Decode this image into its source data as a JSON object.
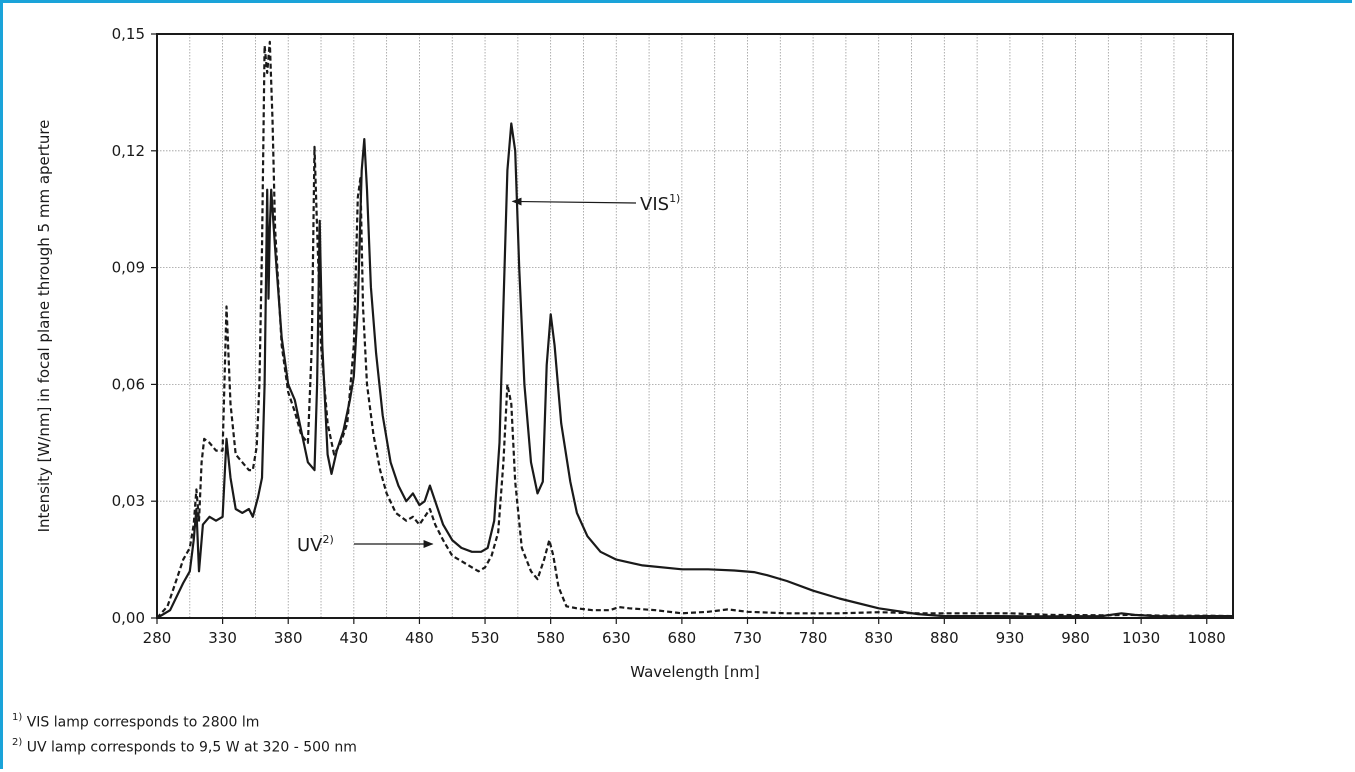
{
  "chart_data": {
    "type": "line",
    "xlabel": "Wavelength [nm]",
    "ylabel": "Intensity [W/nm] in focal plane through 5 mm aperture",
    "xlim": [
      280,
      1100
    ],
    "ylim": [
      0,
      0.15
    ],
    "x_ticks": [
      280,
      330,
      380,
      430,
      480,
      530,
      580,
      630,
      680,
      730,
      780,
      830,
      880,
      930,
      980,
      1030,
      1080
    ],
    "x_tick_labels": [
      "280",
      "330",
      "380",
      "430",
      "480",
      "530",
      "580",
      "630",
      "680",
      "730",
      "780",
      "830",
      "880",
      "930",
      "980",
      "1030",
      "1080"
    ],
    "y_ticks": [
      0,
      0.03,
      0.06,
      0.09,
      0.12,
      0.15
    ],
    "y_tick_labels": [
      "0,00",
      "0,03",
      "0,06",
      "0,09",
      "0,12",
      "0,15"
    ],
    "grid": true,
    "series": [
      {
        "name": "VIS",
        "superscript": "1)",
        "style": "solid",
        "color": "#1a1a1a",
        "points": [
          [
            280,
            0.0
          ],
          [
            290,
            0.002
          ],
          [
            300,
            0.009
          ],
          [
            305,
            0.012
          ],
          [
            308,
            0.02
          ],
          [
            310,
            0.028
          ],
          [
            312,
            0.012
          ],
          [
            315,
            0.024
          ],
          [
            320,
            0.026
          ],
          [
            325,
            0.025
          ],
          [
            330,
            0.026
          ],
          [
            333,
            0.046
          ],
          [
            336,
            0.036
          ],
          [
            340,
            0.028
          ],
          [
            345,
            0.027
          ],
          [
            350,
            0.028
          ],
          [
            353,
            0.026
          ],
          [
            357,
            0.031
          ],
          [
            360,
            0.036
          ],
          [
            362,
            0.06
          ],
          [
            364,
            0.11
          ],
          [
            365,
            0.082
          ],
          [
            366,
            0.1
          ],
          [
            367,
            0.11
          ],
          [
            370,
            0.095
          ],
          [
            375,
            0.072
          ],
          [
            380,
            0.06
          ],
          [
            385,
            0.056
          ],
          [
            390,
            0.048
          ],
          [
            395,
            0.04
          ],
          [
            400,
            0.038
          ],
          [
            402,
            0.06
          ],
          [
            404,
            0.102
          ],
          [
            406,
            0.07
          ],
          [
            410,
            0.042
          ],
          [
            413,
            0.037
          ],
          [
            417,
            0.043
          ],
          [
            422,
            0.048
          ],
          [
            427,
            0.056
          ],
          [
            430,
            0.062
          ],
          [
            433,
            0.08
          ],
          [
            436,
            0.115
          ],
          [
            438,
            0.123
          ],
          [
            440,
            0.11
          ],
          [
            443,
            0.085
          ],
          [
            447,
            0.068
          ],
          [
            452,
            0.052
          ],
          [
            458,
            0.04
          ],
          [
            464,
            0.034
          ],
          [
            470,
            0.03
          ],
          [
            475,
            0.032
          ],
          [
            480,
            0.029
          ],
          [
            484,
            0.03
          ],
          [
            488,
            0.034
          ],
          [
            492,
            0.03
          ],
          [
            498,
            0.024
          ],
          [
            505,
            0.02
          ],
          [
            512,
            0.018
          ],
          [
            520,
            0.017
          ],
          [
            527,
            0.017
          ],
          [
            532,
            0.018
          ],
          [
            537,
            0.025
          ],
          [
            541,
            0.045
          ],
          [
            544,
            0.08
          ],
          [
            547,
            0.115
          ],
          [
            550,
            0.127
          ],
          [
            553,
            0.12
          ],
          [
            556,
            0.09
          ],
          [
            560,
            0.06
          ],
          [
            565,
            0.04
          ],
          [
            570,
            0.032
          ],
          [
            574,
            0.035
          ],
          [
            577,
            0.065
          ],
          [
            580,
            0.078
          ],
          [
            583,
            0.07
          ],
          [
            588,
            0.05
          ],
          [
            595,
            0.035
          ],
          [
            600,
            0.027
          ],
          [
            608,
            0.021
          ],
          [
            618,
            0.017
          ],
          [
            630,
            0.015
          ],
          [
            650,
            0.0135
          ],
          [
            680,
            0.0125
          ],
          [
            700,
            0.0125
          ],
          [
            720,
            0.0122
          ],
          [
            735,
            0.0118
          ],
          [
            745,
            0.011
          ],
          [
            760,
            0.0095
          ],
          [
            780,
            0.007
          ],
          [
            800,
            0.005
          ],
          [
            830,
            0.0025
          ],
          [
            860,
            0.001
          ],
          [
            880,
            0.0005
          ],
          [
            920,
            0.0005
          ],
          [
            960,
            0.0004
          ],
          [
            1000,
            0.0005
          ],
          [
            1015,
            0.0012
          ],
          [
            1025,
            0.0008
          ],
          [
            1040,
            0.0005
          ],
          [
            1060,
            0.0004
          ],
          [
            1080,
            0.0005
          ],
          [
            1100,
            0.0005
          ]
        ]
      },
      {
        "name": "UV",
        "superscript": "2)",
        "style": "dashed",
        "color": "#1a1a1a",
        "points": [
          [
            280,
            0.0
          ],
          [
            288,
            0.003
          ],
          [
            295,
            0.01
          ],
          [
            300,
            0.015
          ],
          [
            305,
            0.018
          ],
          [
            308,
            0.024
          ],
          [
            310,
            0.033
          ],
          [
            312,
            0.025
          ],
          [
            314,
            0.04
          ],
          [
            316,
            0.046
          ],
          [
            320,
            0.045
          ],
          [
            325,
            0.043
          ],
          [
            330,
            0.043
          ],
          [
            333,
            0.08
          ],
          [
            336,
            0.055
          ],
          [
            340,
            0.042
          ],
          [
            345,
            0.04
          ],
          [
            350,
            0.038
          ],
          [
            353,
            0.038
          ],
          [
            356,
            0.044
          ],
          [
            358,
            0.06
          ],
          [
            360,
            0.095
          ],
          [
            362,
            0.147
          ],
          [
            364,
            0.14
          ],
          [
            366,
            0.148
          ],
          [
            368,
            0.128
          ],
          [
            370,
            0.1
          ],
          [
            375,
            0.07
          ],
          [
            380,
            0.058
          ],
          [
            385,
            0.053
          ],
          [
            390,
            0.047
          ],
          [
            395,
            0.045
          ],
          [
            398,
            0.07
          ],
          [
            400,
            0.121
          ],
          [
            402,
            0.1
          ],
          [
            405,
            0.07
          ],
          [
            410,
            0.05
          ],
          [
            415,
            0.042
          ],
          [
            420,
            0.045
          ],
          [
            425,
            0.05
          ],
          [
            430,
            0.07
          ],
          [
            433,
            0.108
          ],
          [
            435,
            0.113
          ],
          [
            437,
            0.08
          ],
          [
            440,
            0.06
          ],
          [
            445,
            0.047
          ],
          [
            450,
            0.038
          ],
          [
            455,
            0.032
          ],
          [
            462,
            0.027
          ],
          [
            470,
            0.025
          ],
          [
            475,
            0.026
          ],
          [
            480,
            0.024
          ],
          [
            484,
            0.026
          ],
          [
            488,
            0.028
          ],
          [
            492,
            0.024
          ],
          [
            498,
            0.02
          ],
          [
            505,
            0.016
          ],
          [
            515,
            0.014
          ],
          [
            525,
            0.012
          ],
          [
            530,
            0.013
          ],
          [
            535,
            0.016
          ],
          [
            540,
            0.022
          ],
          [
            544,
            0.04
          ],
          [
            547,
            0.06
          ],
          [
            550,
            0.055
          ],
          [
            553,
            0.035
          ],
          [
            558,
            0.018
          ],
          [
            565,
            0.012
          ],
          [
            570,
            0.01
          ],
          [
            575,
            0.015
          ],
          [
            579,
            0.02
          ],
          [
            582,
            0.016
          ],
          [
            586,
            0.008
          ],
          [
            592,
            0.003
          ],
          [
            600,
            0.0025
          ],
          [
            612,
            0.002
          ],
          [
            625,
            0.002
          ],
          [
            632,
            0.0028
          ],
          [
            640,
            0.0025
          ],
          [
            660,
            0.002
          ],
          [
            680,
            0.0012
          ],
          [
            700,
            0.0016
          ],
          [
            715,
            0.0022
          ],
          [
            730,
            0.0016
          ],
          [
            760,
            0.0012
          ],
          [
            800,
            0.0012
          ],
          [
            830,
            0.0015
          ],
          [
            860,
            0.0012
          ],
          [
            900,
            0.0012
          ],
          [
            930,
            0.0012
          ],
          [
            960,
            0.0008
          ],
          [
            1000,
            0.0007
          ],
          [
            1020,
            0.0008
          ],
          [
            1050,
            0.0006
          ],
          [
            1080,
            0.0006
          ],
          [
            1100,
            0.0005
          ]
        ]
      }
    ],
    "annotations": [
      {
        "text": "VIS",
        "sup": "1)",
        "target": [
          551,
          0.107
        ]
      },
      {
        "text": "UV",
        "sup": "2)",
        "target": [
          490,
          0.019
        ]
      }
    ]
  },
  "footnotes": [
    {
      "sup": "1)",
      "text": "VIS lamp corresponds to 2800 lm"
    },
    {
      "sup": "2)",
      "text": "UV lamp corresponds to 9,5 W at 320 - 500 nm"
    }
  ]
}
